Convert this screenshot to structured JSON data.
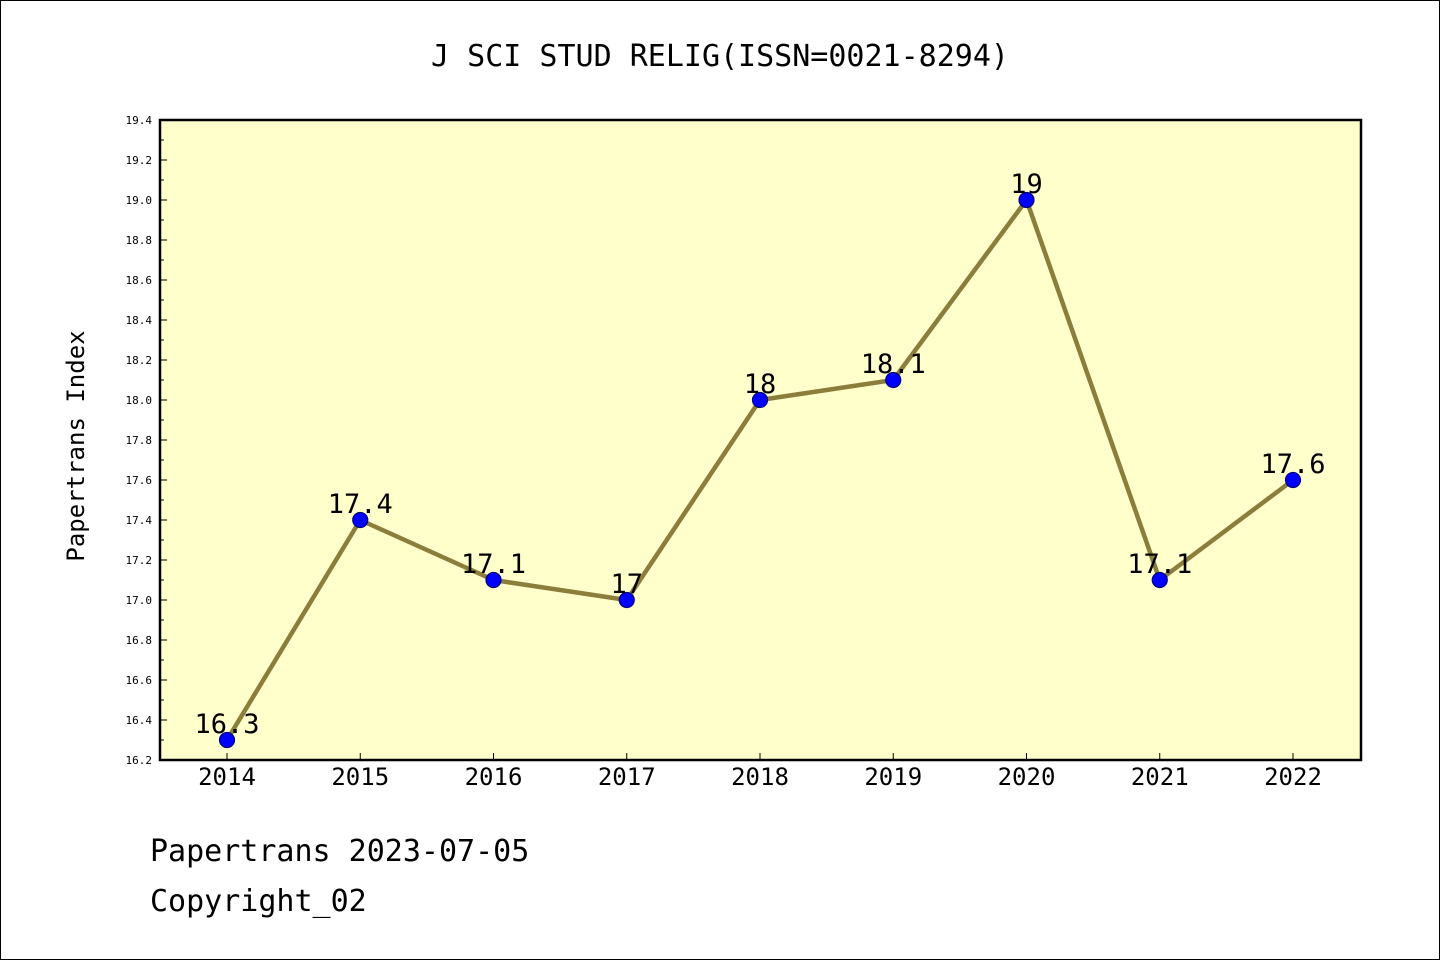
{
  "chart_data": {
    "type": "line",
    "title": "J SCI STUD RELIG(ISSN=0021-8294)",
    "xlabel": "",
    "ylabel": "Papertrans Index",
    "categories": [
      "2014",
      "2015",
      "2016",
      "2017",
      "2018",
      "2019",
      "2020",
      "2021",
      "2022"
    ],
    "series": [
      {
        "values": [
          16.3,
          17.4,
          17.1,
          17.0,
          18.0,
          18.1,
          19.0,
          17.1,
          17.6
        ],
        "data_labels": [
          "16.3",
          "17.4",
          "17.1",
          "17",
          "18",
          "18.1",
          "19",
          "17.1",
          "17.6"
        ]
      }
    ],
    "ylim": [
      16.2,
      19.4
    ],
    "yticks": [
      "16.2",
      "16.4",
      "16.6",
      "16.8",
      "17.0",
      "17.2",
      "17.4",
      "17.6",
      "17.8",
      "18.0",
      "18.2",
      "18.4",
      "18.6",
      "18.8",
      "19.0",
      "19.2",
      "19.4"
    ],
    "grid": false,
    "legend": "none",
    "colors": {
      "plot_background": "#ffffcc",
      "line": "#8b7d3a",
      "marker_fill": "#0000ff",
      "marker_edge": "#000080"
    }
  },
  "footer": {
    "date_line": "Papertrans 2023-07-05",
    "copyright_line": "Copyright_02"
  }
}
